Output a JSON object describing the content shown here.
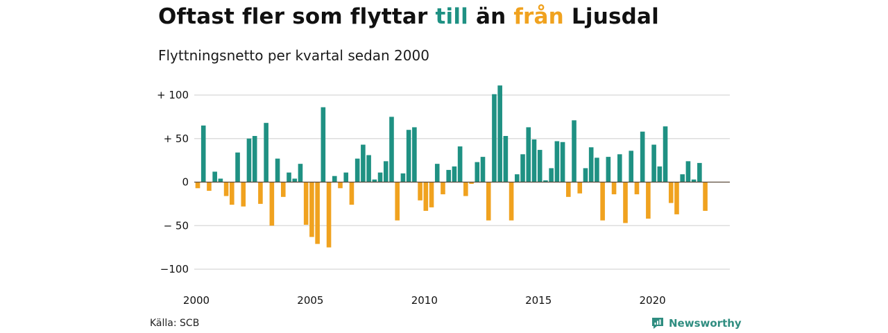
{
  "header": {
    "title_parts": [
      "Oftast fler som flyttar ",
      "till",
      " än ",
      "från",
      " Ljusdal"
    ],
    "subtitle": "Flyttningsnetto per kvartal sedan 2000"
  },
  "footer": {
    "source": "Källa: SCB",
    "logo_text": "Newsworthy"
  },
  "colors": {
    "positive": "#1f9183",
    "negative": "#f0a21f",
    "grid": "#dddddd",
    "zero_line": "#5a4a3a"
  },
  "chart_data": {
    "type": "bar",
    "title": "Oftast fler som flyttar till än från Ljusdal",
    "subtitle": "Flyttningsnetto per kvartal sedan 2000",
    "ylim": [
      -100,
      100
    ],
    "yticks": [
      100,
      50,
      0,
      -50,
      -100
    ],
    "ytick_labels": [
      "+ 100",
      "+  50",
      "0",
      "− 50",
      "−100"
    ],
    "xtick_years": [
      2000,
      2005,
      2010,
      2015,
      2020
    ],
    "start_year": 2000,
    "grid": true,
    "values": [
      -7,
      65,
      -10,
      12,
      4,
      -16,
      -26,
      34,
      -28,
      50,
      53,
      -25,
      68,
      -50,
      27,
      -17,
      11,
      4,
      21,
      -49,
      -63,
      -71,
      86,
      -75,
      7,
      -7,
      11,
      -26,
      27,
      43,
      31,
      3,
      11,
      24,
      75,
      -44,
      10,
      60,
      63,
      -21,
      -33,
      -29,
      21,
      -14,
      14,
      18,
      41,
      -16,
      -2,
      23,
      29,
      -44,
      101,
      111,
      53,
      -44,
      9,
      32,
      63,
      49,
      37,
      2,
      16,
      47,
      46,
      -17,
      71,
      -13,
      16,
      40,
      28,
      -44,
      29,
      -14,
      32,
      -47,
      36,
      -14,
      58,
      -42,
      43,
      18,
      64,
      -24,
      -37,
      9,
      24,
      3,
      22,
      -33
    ]
  }
}
